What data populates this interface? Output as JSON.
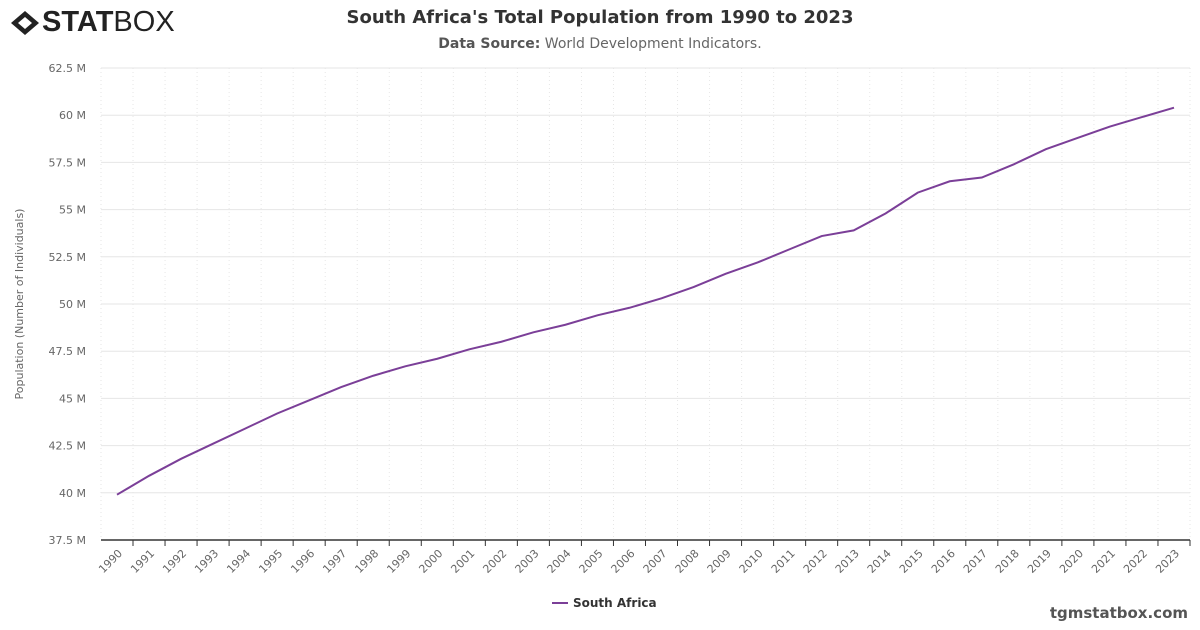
{
  "logo": {
    "text_bold": "STAT",
    "text_light": "BOX"
  },
  "credit": "tgmstatbox.com",
  "colors": {
    "line": "#7b3f98",
    "grid": "#e6e6e6",
    "axis": "#333333"
  },
  "chart_data": {
    "type": "line",
    "title": "South Africa's Total Population from 1990 to 2023",
    "subtitle_label": "Data Source:",
    "subtitle_text": "World Development Indicators.",
    "xlabel": "",
    "ylabel": "Population (Number of Individuals)",
    "ylim": [
      37.5,
      62.5
    ],
    "yticks": [
      "37.5 M",
      "40 M",
      "42.5 M",
      "45 M",
      "47.5 M",
      "50 M",
      "52.5 M",
      "55 M",
      "57.5 M",
      "60 M",
      "62.5 M"
    ],
    "grid": true,
    "legend_position": "bottom",
    "x": [
      "1990",
      "1991",
      "1992",
      "1993",
      "1994",
      "1995",
      "1996",
      "1997",
      "1998",
      "1999",
      "2000",
      "2001",
      "2002",
      "2003",
      "2004",
      "2005",
      "2006",
      "2007",
      "2008",
      "2009",
      "2010",
      "2011",
      "2012",
      "2013",
      "2014",
      "2015",
      "2016",
      "2017",
      "2018",
      "2019",
      "2020",
      "2021",
      "2022",
      "2023"
    ],
    "series": [
      {
        "name": "South Africa",
        "unit": "M",
        "values": [
          39.9,
          40.9,
          41.8,
          42.6,
          43.4,
          44.2,
          44.9,
          45.6,
          46.2,
          46.7,
          47.1,
          47.6,
          48.0,
          48.5,
          48.9,
          49.4,
          49.8,
          50.3,
          50.9,
          51.6,
          52.2,
          52.9,
          53.6,
          53.9,
          54.8,
          55.9,
          56.5,
          56.7,
          57.4,
          58.2,
          58.8,
          59.4,
          59.9,
          60.4
        ]
      }
    ]
  }
}
